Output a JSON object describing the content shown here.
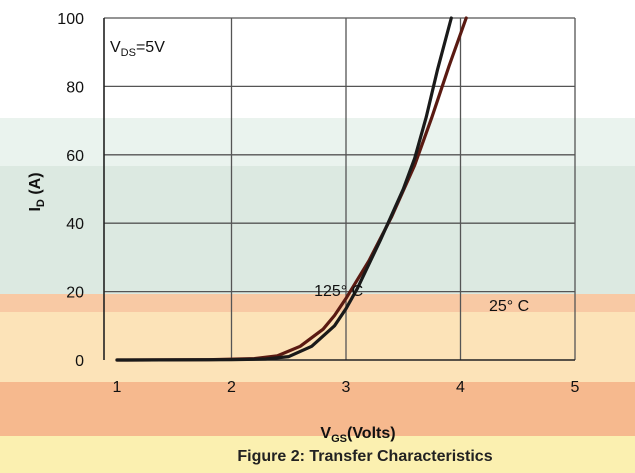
{
  "chart_data": {
    "type": "line",
    "title": "Figure 2: Transfer Characteristics",
    "xlabel": "V",
    "xlabel_sub": "GS",
    "xlabel_unit": "(Volts)",
    "ylabel": "I",
    "ylabel_sub": "D",
    "ylabel_unit": " (A)",
    "xlim": [
      1,
      5
    ],
    "ylim": [
      0,
      100
    ],
    "x_ticks": [
      1,
      2,
      3,
      4,
      5
    ],
    "y_ticks": [
      0,
      20,
      40,
      60,
      80,
      100
    ],
    "grid": true,
    "condition": {
      "prefix": "V",
      "sub": "DS",
      "suffix": "=5V"
    },
    "series": [
      {
        "name": "125° C",
        "points": [
          [
            1.0,
            0
          ],
          [
            1.8,
            0.1
          ],
          [
            2.2,
            0.4
          ],
          [
            2.4,
            1.2
          ],
          [
            2.6,
            4
          ],
          [
            2.8,
            9
          ],
          [
            2.9,
            13
          ],
          [
            3.0,
            18
          ],
          [
            3.2,
            29
          ],
          [
            3.4,
            42
          ],
          [
            3.6,
            57
          ],
          [
            3.75,
            71
          ],
          [
            3.9,
            86
          ],
          [
            4.05,
            100
          ]
        ]
      },
      {
        "name": "25° C",
        "points": [
          [
            1.0,
            0
          ],
          [
            2.0,
            0.1
          ],
          [
            2.3,
            0.3
          ],
          [
            2.5,
            1
          ],
          [
            2.7,
            4
          ],
          [
            2.9,
            10
          ],
          [
            3.0,
            15
          ],
          [
            3.1,
            21
          ],
          [
            3.3,
            35
          ],
          [
            3.5,
            50
          ],
          [
            3.6,
            59
          ],
          [
            3.7,
            71
          ],
          [
            3.8,
            85
          ],
          [
            3.92,
            100
          ]
        ]
      }
    ],
    "annotations": [
      {
        "text": "125° C",
        "series": 0
      },
      {
        "text": "25° C",
        "series": 1
      }
    ]
  }
}
